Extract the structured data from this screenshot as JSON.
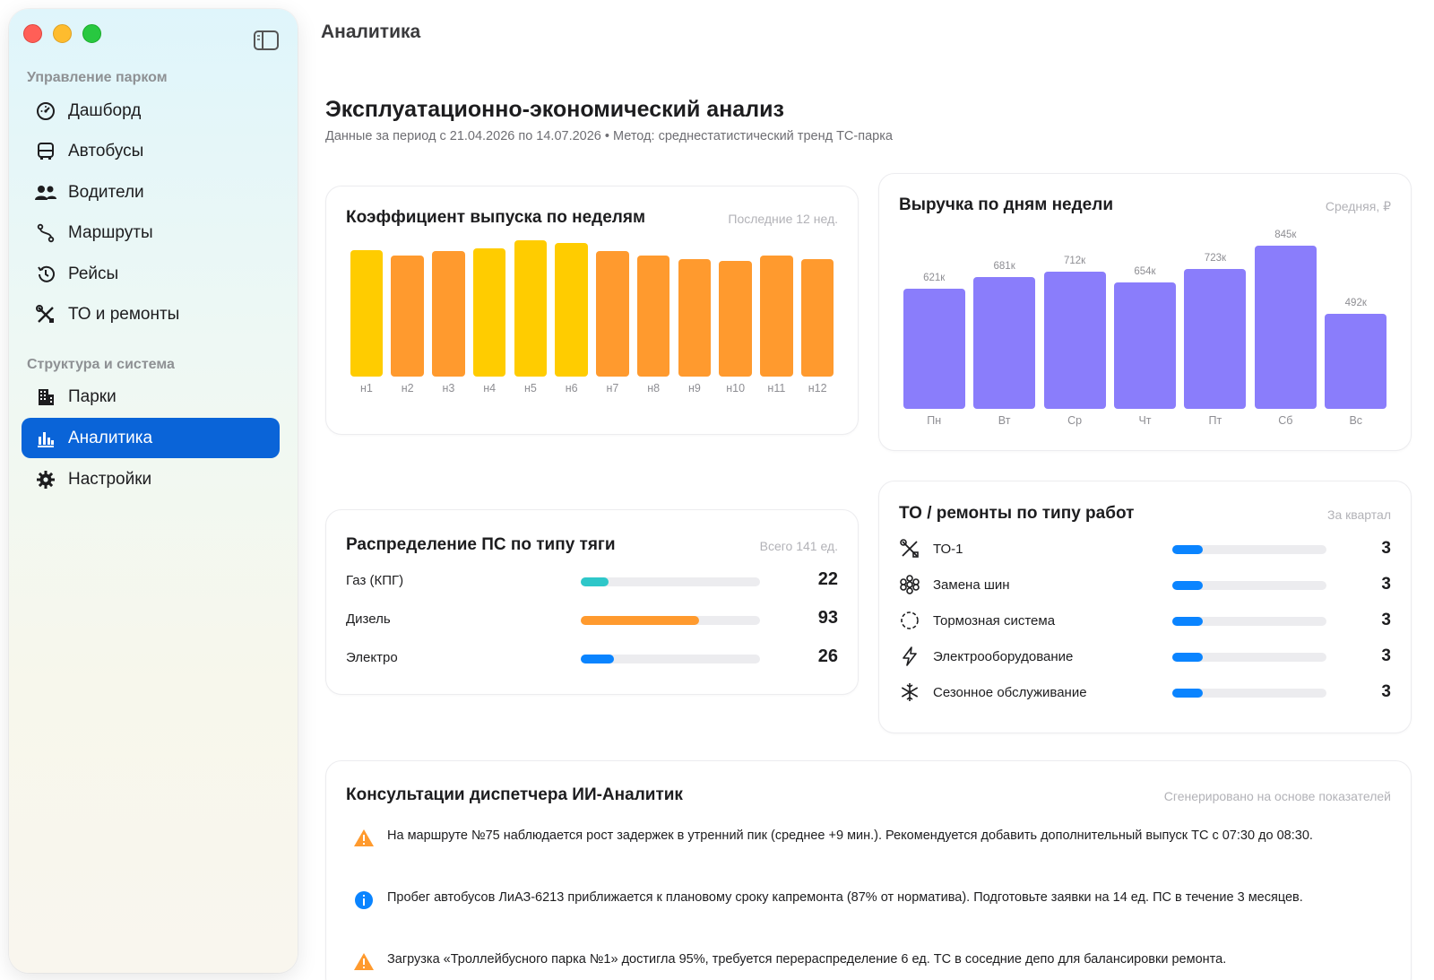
{
  "window": {
    "title": "Аналитика"
  },
  "sidebar": {
    "sections": [
      {
        "label": "Управление парком",
        "items": [
          {
            "label": "Дашборд",
            "icon": "gauge-icon"
          },
          {
            "label": "Автобусы",
            "icon": "bus-icon"
          },
          {
            "label": "Водители",
            "icon": "people-icon"
          },
          {
            "label": "Маршруты",
            "icon": "route-icon"
          },
          {
            "label": "Рейсы",
            "icon": "history-icon"
          },
          {
            "label": "ТО и ремонты",
            "icon": "tools-icon"
          }
        ]
      },
      {
        "label": "Структура и система",
        "items": [
          {
            "label": "Парки",
            "icon": "building-icon"
          },
          {
            "label": "Аналитика",
            "icon": "chart-icon",
            "active": true
          },
          {
            "label": "Настройки",
            "icon": "gear-icon"
          }
        ]
      }
    ]
  },
  "page": {
    "title": "Эксплуатационно-экономический анализ",
    "subtitle": "Данные за период с 21.04.2026 по 14.07.2026 • Метод: среднестатистический тренд ТС-парка"
  },
  "weekly": {
    "title": "Коэффициент выпуска по неделям",
    "meta": "Последние 12 нед."
  },
  "revenue": {
    "title": "Выручка по дням недели",
    "meta": "Средняя, ₽"
  },
  "traction": {
    "title": "Распределение ПС по типу тяги",
    "meta": "Всего 141 ед.",
    "rows": [
      {
        "label": "Газ (КПГ)",
        "value": "22",
        "fraction": 0.156,
        "color": "#2ec7c9"
      },
      {
        "label": "Дизель",
        "value": "93",
        "fraction": 0.66,
        "color": "#ff9a2e"
      },
      {
        "label": "Электро",
        "value": "26",
        "fraction": 0.184,
        "color": "#0a84ff"
      }
    ]
  },
  "maintenance": {
    "title": "ТО / ремонты по типу работ",
    "meta": "За квартал",
    "rows": [
      {
        "label": "ТО-1",
        "value": "3",
        "fraction": 0.2,
        "icon": "wrench-screwdriver-icon"
      },
      {
        "label": "Замена шин",
        "value": "3",
        "fraction": 0.2,
        "icon": "tire-icon"
      },
      {
        "label": "Тормозная система",
        "value": "3",
        "fraction": 0.2,
        "icon": "dashed-circle-icon"
      },
      {
        "label": "Электрооборудование",
        "value": "3",
        "fraction": 0.2,
        "icon": "bolt-icon"
      },
      {
        "label": "Сезонное обслуживание",
        "value": "3",
        "fraction": 0.2,
        "icon": "snowflake-icon"
      }
    ]
  },
  "advisor": {
    "title": "Консультации диспетчера ИИ-Аналитик",
    "meta": "Сгенерировано на основе показателей",
    "tips": [
      {
        "type": "warning",
        "icon": "warning-icon",
        "text": "На маршруте №75 наблюдается рост задержек в утренний пик (среднее +9 мин.). Рекомендуется добавить дополнительный выпуск ТС с 07:30 до 08:30."
      },
      {
        "type": "info",
        "icon": "info-icon",
        "text": "Пробег автобусов ЛиАЗ-6213 приближается к плановому сроку капремонта (87% от норматива). Подготовьте заявки на 14 ед. ПС в течение 3 месяцев."
      },
      {
        "type": "warning",
        "icon": "warning-icon",
        "text": "Загрузка «Троллейбусного парка №1» достигла 95%, требуется перераспределение 6 ед. ТС в соседние депо для балансировки ремонта."
      }
    ]
  },
  "colors": {
    "accent": "#0a64d8",
    "bar_yellow": "#ffcc00",
    "bar_orange": "#ff9a2e",
    "revenue_bar": "#8a7dfb",
    "warning": "#ff9a2e",
    "info": "#0a84ff"
  },
  "chart_data": [
    {
      "type": "bar",
      "title": "Коэффициент выпуска по неделям",
      "categories": [
        "н1",
        "н2",
        "н3",
        "н4",
        "н5",
        "н6",
        "н7",
        "н8",
        "н9",
        "н10",
        "н11",
        "н12"
      ],
      "values": [
        0.93,
        0.89,
        0.92,
        0.94,
        1.0,
        0.98,
        0.92,
        0.89,
        0.86,
        0.85,
        0.89,
        0.86
      ],
      "bar_colors": [
        "#ffcc00",
        "#ff9a2e",
        "#ff9a2e",
        "#ffcc00",
        "#ffcc00",
        "#ffcc00",
        "#ff9a2e",
        "#ff9a2e",
        "#ff9a2e",
        "#ff9a2e",
        "#ff9a2e",
        "#ff9a2e"
      ],
      "ylim": [
        0,
        1.0
      ]
    },
    {
      "type": "bar",
      "title": "Выручка по дням недели",
      "categories": [
        "Пн",
        "Вт",
        "Ср",
        "Чт",
        "Пт",
        "Сб",
        "Вс"
      ],
      "values": [
        621,
        681,
        712,
        654,
        723,
        845,
        492
      ],
      "value_labels": [
        "621к",
        "681к",
        "712к",
        "654к",
        "723к",
        "845к",
        "492к"
      ],
      "ylim": [
        0,
        845
      ]
    }
  ]
}
